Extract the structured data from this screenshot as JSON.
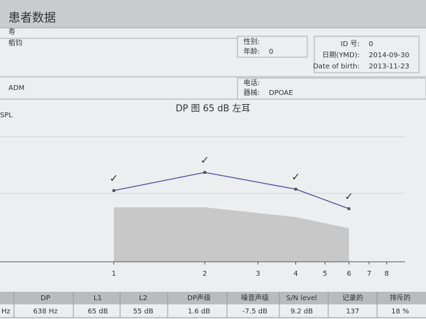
{
  "header": {
    "title": "患者数据"
  },
  "patient": {
    "name1": "寿",
    "name2": "栢钧",
    "sex_label": "性别:",
    "age_label": "年龄:",
    "age": "0",
    "id_label": "ID 号:",
    "id": "0",
    "date_label": "日期(YMD):",
    "date": "2014-09-30",
    "dob_label": "Date of birth:",
    "dob": "2013-11-23",
    "adm": "ADM",
    "phone_label": "电话:",
    "device_label": "器械:",
    "device": "DPOAE"
  },
  "chart_data": {
    "type": "line",
    "title": "DP 图 65 dB 左耳",
    "y_label": "SPL",
    "log_x": true,
    "xlim": [
      0.42,
      9.2
    ],
    "xticks": [
      1,
      2,
      3,
      4,
      5,
      6,
      7,
      8
    ],
    "ylim": [
      -20,
      30
    ],
    "x": [
      1,
      2,
      4,
      6
    ],
    "series": [
      {
        "name": "DP",
        "color": "#4a4aa0",
        "values": [
          5.5,
          12,
          6,
          -1
        ],
        "point_labels": [
          "✓",
          "✓",
          "✓",
          "✓"
        ]
      },
      {
        "name": "噪音",
        "color": "#c8c8c8",
        "values": [
          -0.5,
          -0.5,
          -4,
          -8
        ],
        "area": true
      }
    ]
  },
  "table": {
    "header": [
      "",
      "DP",
      "L1",
      "L2",
      "DP声级",
      "噪音声级",
      "S/N level",
      "记录的",
      "排斥的"
    ],
    "rows": [
      [
        "Hz",
        "638 Hz",
        "65 dB",
        "55 dB",
        "1.6 dB",
        "-7.5 dB",
        "9.2 dB",
        "137",
        "18 %"
      ]
    ]
  }
}
